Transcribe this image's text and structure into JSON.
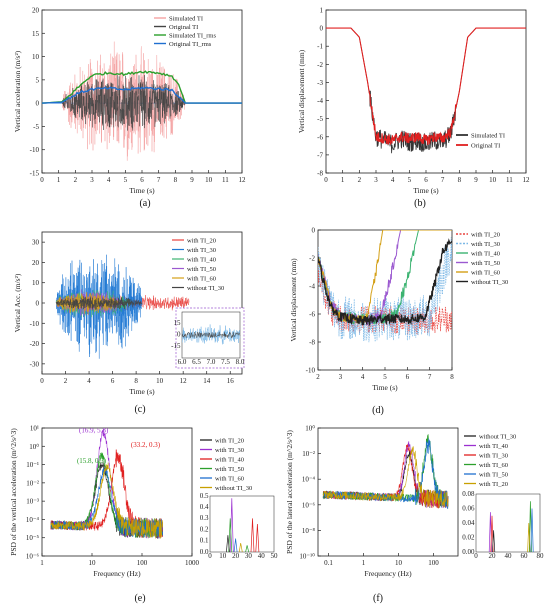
{
  "chart_data": [
    {
      "id": "a",
      "panel_label": "(a)",
      "type": "line",
      "xlabel": "Time (s)",
      "ylabel": "Vertical acceleration (m/s²)",
      "xlim": [
        0,
        12
      ],
      "ylim": [
        -15,
        20
      ],
      "xticks": [
        0,
        1,
        2,
        3,
        4,
        5,
        6,
        7,
        8,
        9,
        10,
        11,
        12
      ],
      "yticks": [
        -15,
        -10,
        -5,
        0,
        5,
        10,
        15,
        20
      ],
      "legend_position": "top-right",
      "series": [
        {
          "name": "Simulated TI",
          "color": "#f4a3a3",
          "kind": "signal",
          "t_start": 1.2,
          "t_end": 8.6,
          "amplitude": 14
        },
        {
          "name": "Original TI",
          "color": "#444444",
          "kind": "signal",
          "t_start": 1.2,
          "t_end": 8.6,
          "amplitude": 7
        },
        {
          "name": "Simulated TI_rms",
          "color": "#2ca02c",
          "kind": "rms",
          "x": [
            0,
            1.2,
            1.6,
            2.2,
            3,
            4,
            5,
            6,
            7,
            7.8,
            8.2,
            8.6,
            12
          ],
          "y": [
            0,
            0.3,
            1.5,
            3.5,
            6,
            6.5,
            6.2,
            6.8,
            6.5,
            5.8,
            4,
            0,
            0
          ]
        },
        {
          "name": "Original TI_rms",
          "color": "#1f6fd0",
          "kind": "rms",
          "x": [
            0,
            1.2,
            1.6,
            2.2,
            3,
            4,
            5,
            6,
            7,
            7.8,
            8.2,
            8.6,
            12
          ],
          "y": [
            0,
            0.2,
            1,
            2.2,
            3,
            3.2,
            2.9,
            3.3,
            3.1,
            2.8,
            1.5,
            0,
            0
          ]
        }
      ]
    },
    {
      "id": "b",
      "panel_label": "(b)",
      "type": "line",
      "xlabel": "Time (s)",
      "ylabel": "Vertical displacement (mm)",
      "xlim": [
        0,
        12
      ],
      "ylim": [
        -8,
        1
      ],
      "xticks": [
        0,
        1,
        2,
        3,
        4,
        5,
        6,
        7,
        8,
        9,
        10,
        11,
        12
      ],
      "yticks": [
        -8,
        -7,
        -6,
        -5,
        -4,
        -3,
        -2,
        -1,
        0,
        1
      ],
      "legend_position": "bottom-right",
      "series": [
        {
          "name": "Simulated TI",
          "color": "#333333",
          "x": [
            0,
            1.5,
            2,
            2.5,
            3,
            3.5,
            4,
            4.5,
            5,
            5.5,
            6,
            6.5,
            7,
            7.5,
            8,
            8.5,
            9,
            12
          ],
          "y": [
            0,
            0,
            -0.5,
            -3,
            -6,
            -6.2,
            -6.4,
            -6.1,
            -6.3,
            -6.2,
            -6.4,
            -6.2,
            -6.3,
            -5.8,
            -3.5,
            -0.5,
            0,
            0
          ],
          "noise": 0.55
        },
        {
          "name": "Original TI",
          "color": "#e02020",
          "x": [
            0,
            1.5,
            2,
            2.5,
            3,
            3.5,
            4,
            4.5,
            5,
            5.5,
            6,
            6.5,
            7,
            7.5,
            8,
            8.5,
            9,
            12
          ],
          "y": [
            0,
            0,
            -0.5,
            -3,
            -6,
            -6.1,
            -6.2,
            -6.0,
            -6.1,
            -6.0,
            -6.2,
            -6.0,
            -6.1,
            -5.7,
            -3.5,
            -0.5,
            0,
            0
          ],
          "noise": 0.3
        }
      ]
    },
    {
      "id": "c",
      "panel_label": "(c)",
      "type": "line",
      "xlabel": "Time (s)",
      "ylabel": "Vertical Acc. (m/s²)",
      "xlim": [
        0,
        17
      ],
      "ylim": [
        -35,
        35
      ],
      "xticks": [
        0,
        2,
        4,
        6,
        8,
        10,
        12,
        14,
        16
      ],
      "yticks": [
        -30,
        -20,
        -10,
        0,
        10,
        20,
        30
      ],
      "legend_position": "top-right",
      "series": [
        {
          "name": "with TI_20",
          "color": "#e8413c",
          "t_start": 1.2,
          "t_end": 12.5,
          "amplitude": 5
        },
        {
          "name": "with TI_30",
          "color": "#1f78d4",
          "t_start": 1.2,
          "t_end": 8.5,
          "amplitude": 29
        },
        {
          "name": "with TI_40",
          "color": "#3cb371",
          "t_start": 1.2,
          "t_end": 7.5,
          "amplitude": 8
        },
        {
          "name": "with TI_50",
          "color": "#9b59d0",
          "t_start": 1.2,
          "t_end": 6.8,
          "amplitude": 7
        },
        {
          "name": "with TI_60",
          "color": "#d4a017",
          "t_start": 1.2,
          "t_end": 6.5,
          "amplitude": 6
        },
        {
          "name": "without TI_30",
          "color": "#444444",
          "t_start": 1.2,
          "t_end": 8.5,
          "amplitude": 4
        }
      ],
      "inset": {
        "xlim": [
          6.0,
          8.0
        ],
        "ylim": [
          -30,
          30
        ],
        "xticks": [
          6.0,
          6.5,
          7.0,
          7.5,
          8.0
        ],
        "xtick_labels": [
          "6.0",
          "6.5",
          "7.0",
          "7.5",
          "8.0"
        ],
        "yticks": [
          -15,
          0,
          15
        ],
        "ytick_labels": [
          "-15",
          "0",
          "15"
        ]
      }
    },
    {
      "id": "d",
      "panel_label": "(d)",
      "type": "line",
      "xlabel": "Time (s)",
      "ylabel": "Vertical displacement (mm)",
      "xlim": [
        2,
        8
      ],
      "ylim": [
        -10,
        0
      ],
      "xticks": [
        2,
        3,
        4,
        5,
        6,
        7,
        8
      ],
      "yticks": [
        -10,
        -8,
        -6,
        -4,
        -2,
        0
      ],
      "legend_position": "top-right",
      "series": [
        {
          "name": "with TI_20",
          "color": "#e8413c",
          "style": "dotted",
          "x": [
            2,
            2.3,
            2.6,
            3,
            4,
            5,
            6,
            7,
            8
          ],
          "y": [
            -3,
            -4.5,
            -5.8,
            -6.3,
            -6.4,
            -6.3,
            -6.5,
            -6.4,
            -6.3
          ],
          "noise": 1.0
        },
        {
          "name": "with TI_30",
          "color": "#7ab7e6",
          "style": "dotted",
          "x": [
            2,
            2.3,
            2.6,
            3,
            4,
            5,
            6,
            7,
            7.5,
            8
          ],
          "y": [
            -2.5,
            -4,
            -5.5,
            -6.2,
            -6.5,
            -6.3,
            -6.4,
            -6.1,
            -3.5,
            -1
          ],
          "noise": 1.6
        },
        {
          "name": "with TI_40",
          "color": "#3cb371",
          "style": "solid",
          "x": [
            2,
            2.3,
            2.6,
            3,
            4,
            5,
            5.5,
            6,
            6.5,
            8
          ],
          "y": [
            -2,
            -3.8,
            -5.5,
            -6.2,
            -6.4,
            -6.3,
            -6.0,
            -3.5,
            0,
            0
          ],
          "noise": 0.4
        },
        {
          "name": "with TI_50",
          "color": "#9b59d0",
          "style": "solid",
          "x": [
            2,
            2.3,
            2.6,
            3,
            4,
            4.8,
            5.3,
            5.7,
            8
          ],
          "y": [
            -2,
            -3.5,
            -5.3,
            -6.2,
            -6.5,
            -6.2,
            -3,
            0,
            0
          ],
          "noise": 0.4
        },
        {
          "name": "with TI_60",
          "color": "#d4a017",
          "style": "solid",
          "x": [
            2,
            2.3,
            2.6,
            3,
            4,
            4.2,
            4.6,
            4.9,
            8
          ],
          "y": [
            -2,
            -3.6,
            -5.4,
            -6.2,
            -6.4,
            -6.2,
            -3,
            0,
            0
          ],
          "noise": 0.3
        },
        {
          "name": "without TI_30",
          "color": "#222222",
          "style": "solid",
          "x": [
            2,
            2.3,
            2.6,
            3,
            4,
            5,
            6,
            6.8,
            7.2,
            7.6,
            8
          ],
          "y": [
            -2,
            -4,
            -5.6,
            -6.2,
            -6.5,
            -6.3,
            -6.4,
            -6.2,
            -4,
            -1.5,
            -0.8
          ],
          "noise": 0.35
        }
      ]
    },
    {
      "id": "e",
      "panel_label": "(e)",
      "type": "line",
      "xlabel": "Frequency (Hz)",
      "ylabel": "PSD of the vertical acceleration (m^2/s^3)",
      "xscale": "log",
      "yscale": "log",
      "xlim": [
        1,
        1000
      ],
      "ylim": [
        1e-06,
        10
      ],
      "xticks": [
        1,
        10,
        100,
        1000
      ],
      "xtick_labels": [
        "1",
        "10",
        "100",
        "1000"
      ],
      "yticks": [
        1e-06,
        1e-05,
        0.0001,
        0.001,
        0.01,
        0.1,
        1,
        10
      ],
      "ytick_labels": [
        "10⁻⁶",
        "10⁻⁵",
        "10⁻⁴",
        "10⁻³",
        "10⁻²",
        "10⁻¹",
        "10⁰",
        "10¹"
      ],
      "legend_position": "top-right",
      "annotations": [
        {
          "text": "(16.9, 5.8)",
          "x": 16.9,
          "y": 5.8,
          "color": "#9b30d0"
        },
        {
          "text": "(33.2, 0.3)",
          "x": 33.2,
          "y": 0.3,
          "color": "#e02020"
        },
        {
          "text": "(15.8, 0.3)",
          "x": 15.8,
          "y": 0.3,
          "color": "#2ca02c"
        }
      ],
      "series": [
        {
          "name": "with TI_20",
          "color": "#222222",
          "peak_f": 15.8,
          "peak_v": 0.1
        },
        {
          "name": "with TI_30",
          "color": "#9b30d0",
          "peak_f": 16.9,
          "peak_v": 5.8
        },
        {
          "name": "with TI_40",
          "color": "#e02020",
          "peak_f": 33.2,
          "peak_v": 0.3
        },
        {
          "name": "with TI_50",
          "color": "#2ca02c",
          "peak_f": 15.8,
          "peak_v": 0.3
        },
        {
          "name": "with TI_60",
          "color": "#1f6fd0",
          "peak_f": 18,
          "peak_v": 0.05
        },
        {
          "name": "without TI_30",
          "color": "#c8a000",
          "peak_f": 20,
          "peak_v": 0.08
        }
      ],
      "inset": {
        "xlim": [
          0,
          50
        ],
        "ylim": [
          0,
          0.5
        ],
        "xticks": [
          0,
          10,
          20,
          30,
          40,
          50
        ],
        "yticks": [
          0.0,
          0.1,
          0.2,
          0.3,
          0.4,
          0.5
        ],
        "ytick_labels": [
          "0.0",
          "0.1",
          "0.2",
          "0.3",
          "0.4",
          "0.5"
        ]
      }
    },
    {
      "id": "f",
      "panel_label": "(f)",
      "type": "line",
      "xlabel": "Frequency (Hz)",
      "ylabel": "PSD of the lateral acceleration (m^2/s^3)",
      "xscale": "log",
      "yscale": "log",
      "xlim": [
        0.05,
        500
      ],
      "ylim": [
        1e-10,
        1
      ],
      "xticks": [
        0.1,
        1,
        10,
        100
      ],
      "xtick_labels": [
        "0.1",
        "1",
        "10",
        "100"
      ],
      "yticks": [
        1e-10,
        1e-08,
        1e-06,
        0.0001,
        0.01,
        1
      ],
      "ytick_labels": [
        "10⁻¹⁰",
        "10⁻⁸",
        "10⁻⁶",
        "10⁻⁴",
        "10⁻²",
        "10⁰"
      ],
      "legend_position": "top-right",
      "series": [
        {
          "name": "without TI_30",
          "color": "#222222",
          "peak_f": 20,
          "peak_v": 0.01
        },
        {
          "name": "with TI_40",
          "color": "#9b30d0",
          "peak_f": 20,
          "peak_v": 0.05
        },
        {
          "name": "with TI_30",
          "color": "#e02020",
          "peak_f": 18,
          "peak_v": 0.04
        },
        {
          "name": "with TI_60",
          "color": "#2ca02c",
          "peak_f": 70,
          "peak_v": 0.07
        },
        {
          "name": "with TI_50",
          "color": "#1f6fd0",
          "peak_f": 70,
          "peak_v": 0.05
        },
        {
          "name": "with TI_20",
          "color": "#c8a000",
          "peak_f": 25,
          "peak_v": 0.02
        }
      ],
      "inset": {
        "xlim": [
          0,
          80
        ],
        "ylim": [
          0,
          0.08
        ],
        "xticks": [
          0,
          20,
          40,
          60,
          80
        ],
        "yticks": [
          0,
          0.02,
          0.04,
          0.06,
          0.08
        ],
        "ytick_labels": [
          "0.00",
          "0.02",
          "0.04",
          "0.06",
          "0.08"
        ]
      }
    }
  ]
}
